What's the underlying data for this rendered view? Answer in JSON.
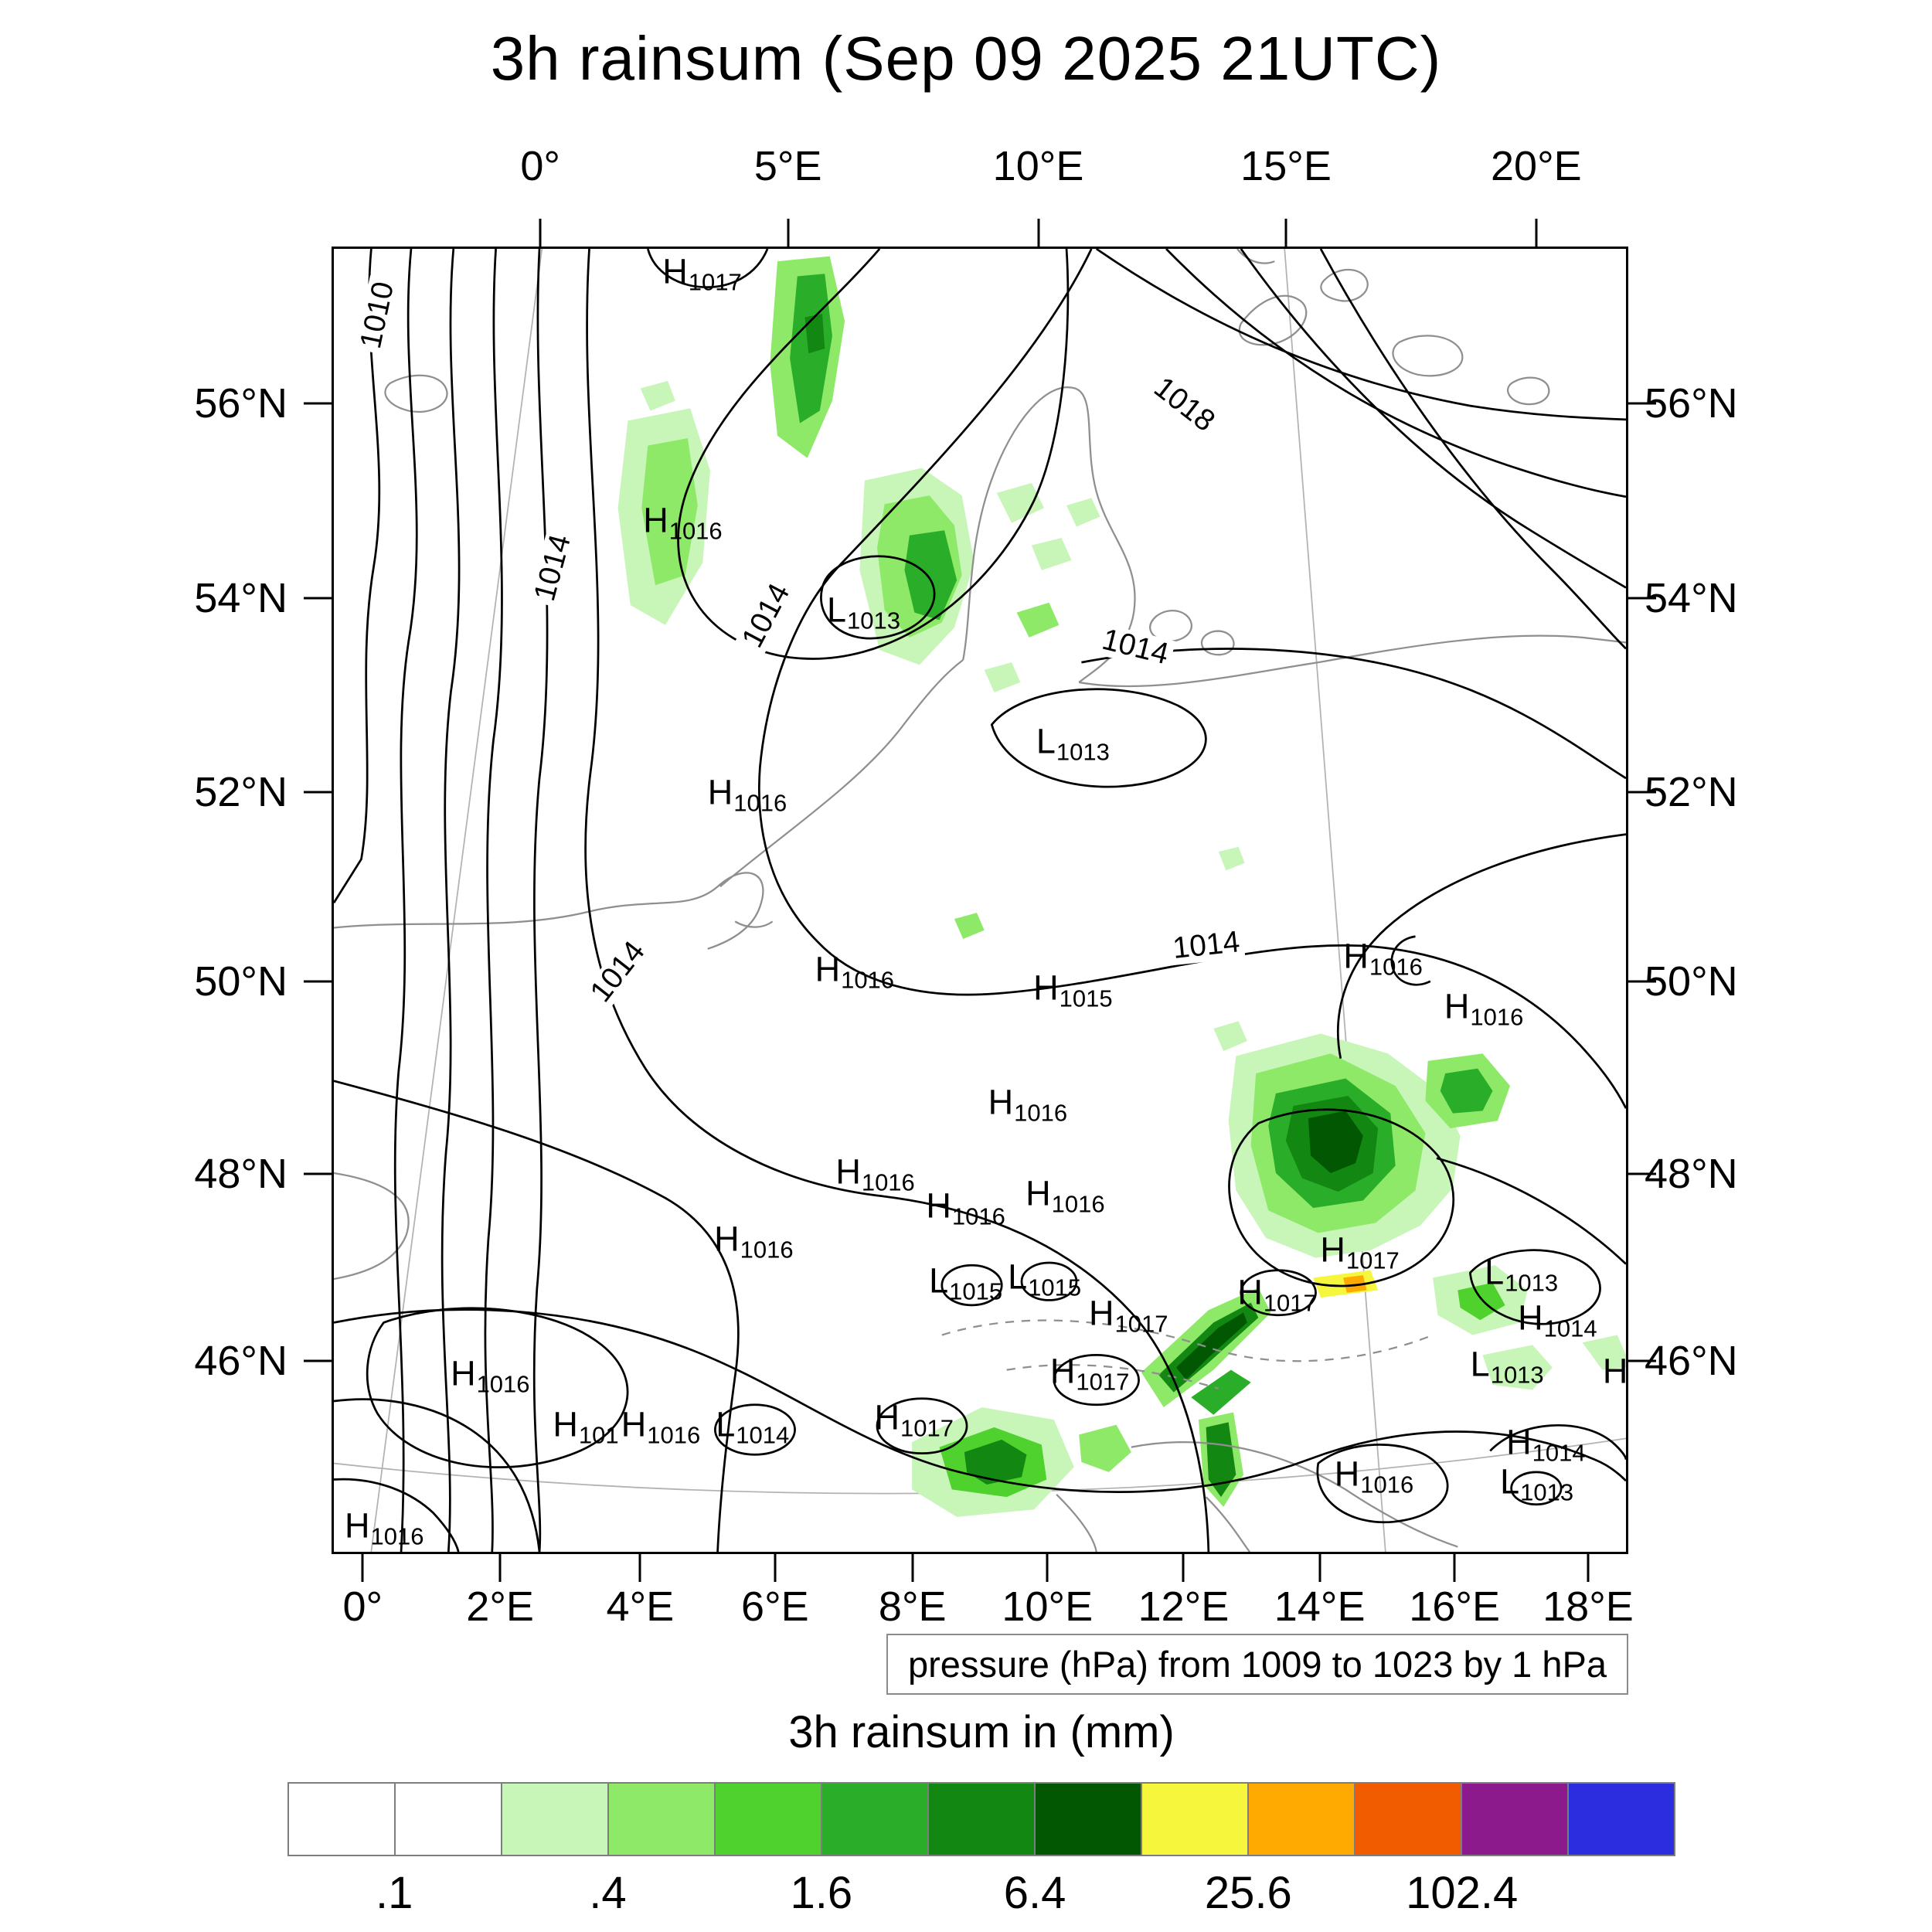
{
  "title": "3h rainsum (Sep 09 2025 21UTC)",
  "caption": "pressure (hPa) from 1009 to 1023 by 1 hPa",
  "colorbar": {
    "title": "3h rainsum in (mm)",
    "colors": [
      "#ffffff",
      "#ffffff",
      "#c8f5b8",
      "#8fe969",
      "#4fd22e",
      "#2aae2a",
      "#128712",
      "#025702",
      "#f6f63c",
      "#ffaa00",
      "#f25c00",
      "#8c1a8c",
      "#2d2de0"
    ],
    "tick_labels": [
      ".1",
      ".4",
      "1.6",
      "6.4",
      "25.6",
      "102.4"
    ],
    "label_boundaries": [
      1,
      3,
      5,
      7,
      9,
      11
    ]
  },
  "chart_data": {
    "type": "heatmap",
    "title": "3h rainsum (Sep 09 2025 21UTC)",
    "units": "mm",
    "colorbar_title": "3h rainsum in (mm)",
    "colorbar_tick_labels": [
      ".1",
      ".4",
      "1.6",
      "6.4",
      "25.6",
      "102.4"
    ],
    "pressure_note": "pressure (hPa) from 1009 to 1023 by 1 hPa",
    "axes": {
      "top": [
        {
          "label": "0°",
          "x": 16.1
        },
        {
          "label": "5°E",
          "x": 35.2
        },
        {
          "label": "10°E",
          "x": 54.5
        },
        {
          "label": "15°E",
          "x": 73.6
        },
        {
          "label": "20°E",
          "x": 92.9
        }
      ],
      "bottom": [
        {
          "label": "0°",
          "x": 2.4
        },
        {
          "label": "2°E",
          "x": 13.0
        },
        {
          "label": "4°E",
          "x": 23.8
        },
        {
          "label": "6°E",
          "x": 34.2
        },
        {
          "label": "8°E",
          "x": 44.8
        },
        {
          "label": "10°E",
          "x": 55.2
        },
        {
          "label": "12°E",
          "x": 65.7
        },
        {
          "label": "14°E",
          "x": 76.2
        },
        {
          "label": "16°E",
          "x": 86.6
        },
        {
          "label": "18°E",
          "x": 96.9
        }
      ],
      "lat": [
        {
          "label": "56°N",
          "y": 12.0
        },
        {
          "label": "54°N",
          "y": 26.9
        },
        {
          "label": "52°N",
          "y": 41.7
        },
        {
          "label": "50°N",
          "y": 56.2
        },
        {
          "label": "48°N",
          "y": 70.9
        },
        {
          "label": "46°N",
          "y": 85.2
        }
      ]
    },
    "pressure_markers": [
      {
        "letter": "H",
        "value": "1017",
        "x": 28.5,
        "y": 1.7
      },
      {
        "letter": "H",
        "value": "1016",
        "x": 27.0,
        "y": 20.8
      },
      {
        "letter": "L",
        "value": "1013",
        "x": 41.0,
        "y": 27.7
      },
      {
        "letter": "L",
        "value": "1013",
        "x": 57.2,
        "y": 37.8
      },
      {
        "letter": "H",
        "value": "1016",
        "x": 32.0,
        "y": 41.7
      },
      {
        "letter": "H",
        "value": "1016",
        "x": 40.3,
        "y": 55.3
      },
      {
        "letter": "H",
        "value": "1015",
        "x": 57.2,
        "y": 56.7
      },
      {
        "letter": "H",
        "value": "1016",
        "x": 81.2,
        "y": 54.3
      },
      {
        "letter": "H",
        "value": "1016",
        "x": 89.0,
        "y": 58.1
      },
      {
        "letter": "H",
        "value": "1016",
        "x": 53.7,
        "y": 65.5
      },
      {
        "letter": "H",
        "value": "1016",
        "x": 41.9,
        "y": 70.8
      },
      {
        "letter": "H",
        "value": "1016",
        "x": 48.9,
        "y": 73.4
      },
      {
        "letter": "H",
        "value": "1016",
        "x": 56.6,
        "y": 72.5
      },
      {
        "letter": "H",
        "value": "1016",
        "x": 32.5,
        "y": 76.0
      },
      {
        "letter": "H",
        "value": "1017",
        "x": 79.4,
        "y": 76.8
      },
      {
        "letter": "L",
        "value": "1015",
        "x": 48.9,
        "y": 79.2
      },
      {
        "letter": "L",
        "value": "1015",
        "x": 55.0,
        "y": 78.9
      },
      {
        "letter": "H",
        "value": "1017",
        "x": 73.0,
        "y": 80.1
      },
      {
        "letter": "L",
        "value": "1013",
        "x": 91.9,
        "y": 78.5
      },
      {
        "letter": "H",
        "value": "1014",
        "x": 94.7,
        "y": 82.0
      },
      {
        "letter": "H",
        "value": "1017",
        "x": 61.5,
        "y": 81.7
      },
      {
        "letter": "L",
        "value": "1013",
        "x": 90.8,
        "y": 85.6
      },
      {
        "letter": "H",
        "value": "1016",
        "x": 12.1,
        "y": 86.3
      },
      {
        "letter": "H",
        "value": "1017",
        "x": 58.5,
        "y": 86.1
      },
      {
        "letter": "H",
        "value": "101",
        "x": 19.5,
        "y": 90.2
      },
      {
        "letter": "H",
        "value": "1016",
        "x": 25.3,
        "y": 90.2
      },
      {
        "letter": "L",
        "value": "1014",
        "x": 32.4,
        "y": 90.2
      },
      {
        "letter": "H",
        "value": "1017",
        "x": 44.9,
        "y": 89.7
      },
      {
        "letter": "H",
        "value": "1016",
        "x": 80.5,
        "y": 94.0
      },
      {
        "letter": "H",
        "value": "1014",
        "x": 93.8,
        "y": 91.6
      },
      {
        "letter": "L",
        "value": "1013",
        "x": 93.1,
        "y": 94.6
      },
      {
        "letter": "H",
        "value": "1016",
        "x": 3.9,
        "y": 98.0
      },
      {
        "letter": "H",
        "value": "",
        "x": 99.2,
        "y": 86.1
      }
    ],
    "contour_labels": [
      {
        "text": "1010",
        "x": 3.4,
        "y": 5.1,
        "rot": -78
      },
      {
        "text": "1014",
        "x": 17.0,
        "y": 24.5,
        "rot": -75
      },
      {
        "text": "1014",
        "x": 33.5,
        "y": 28.2,
        "rot": -62
      },
      {
        "text": "1018",
        "x": 65.8,
        "y": 12.0,
        "rot": 38
      },
      {
        "text": "1014",
        "x": 62.0,
        "y": 30.6,
        "rot": 14
      },
      {
        "text": "1014",
        "x": 67.5,
        "y": 53.5,
        "rot": -6
      },
      {
        "text": "1014",
        "x": 22.0,
        "y": 55.5,
        "rot": -52
      }
    ]
  }
}
